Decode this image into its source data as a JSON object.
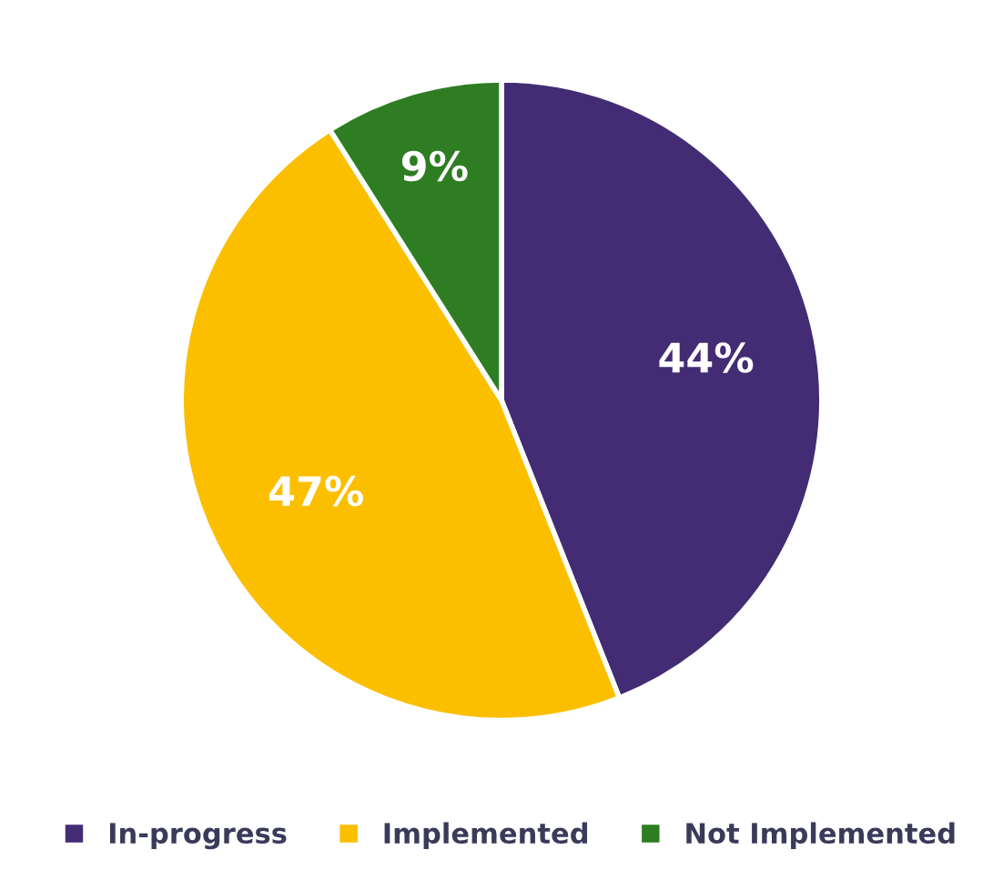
{
  "chart_data": {
    "type": "pie",
    "categories": [
      "In-progress",
      "Implemented",
      "Not Implemented"
    ],
    "values": [
      44,
      47,
      9
    ],
    "colors": [
      "#432c73",
      "#fcbf00",
      "#2e7d23"
    ],
    "value_labels": [
      "44%",
      "47%",
      "9%"
    ],
    "legend": "bottom"
  }
}
